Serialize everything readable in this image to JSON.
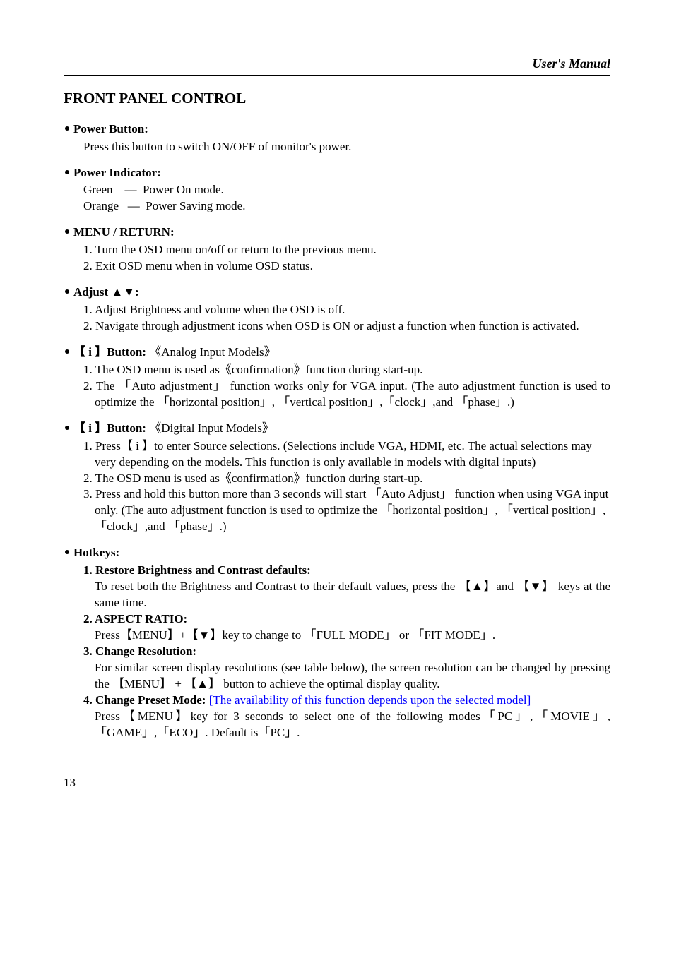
{
  "header": {
    "right": "User's Manual"
  },
  "title": "FRONT PANEL CONTROL",
  "s1": {
    "head": "Power Button:",
    "body": "Press this button to switch ON/OFF of monitor's power."
  },
  "s2": {
    "head": "Power Indicator:",
    "l1": "Green    —  Power On mode.",
    "l2": "Orange   —  Power Saving mode."
  },
  "s3": {
    "head": "MENU / RETURN:",
    "l1": "1. Turn the OSD menu on/off or return to the previous menu.",
    "l2": "2. Exit OSD menu when in volume OSD status."
  },
  "s4": {
    "head": "Adjust ▲▼:",
    "l1": "1. Adjust Brightness and volume when the OSD is off.",
    "l2": "2. Navigate through adjustment icons when OSD is ON or adjust a function when function is activated."
  },
  "s5": {
    "head_pre": "【 i 】Button:",
    "head_post": "《Analog Input Models》",
    "l1": "1. The OSD menu is used as《confirmation》function during start-up.",
    "l2": "2. The 「Auto adjustment」 function works only for VGA input. (The auto adjustment function is used to optimize the 「horizontal position」, 「vertical position」,「clock」,and 「phase」.)"
  },
  "s6": {
    "head_pre": "【 i 】Button:",
    "head_post": "《Digital Input Models》",
    "l1": "1. Press【 i 】to enter Source selections. (Selections include VGA, HDMI, etc. The actual selections may very depending on the models. This function is only available in models with digital inputs)",
    "l2": "2. The OSD menu is used as《confirmation》function during start-up.",
    "l3": "3. Press and hold this button more than 3 seconds will start 「Auto Adjust」 function when using VGA input only. (The auto adjustment function is used to optimize the 「horizontal position」, 「vertical position」, 「clock」,and 「phase」.)"
  },
  "hot": {
    "head": "Hotkeys:",
    "h1": "1. Restore Brightness and Contrast defaults:",
    "b1": "To reset both the Brightness and Contrast to their default values, press the 【▲】and 【▼】 keys at the same time.",
    "h2": "2. ASPECT RATIO:",
    "b2": "Press【MENU】+【▼】key to change to 「FULL MODE」 or 「FIT MODE」.",
    "h3": "3. Change Resolution:",
    "b3": "For similar screen display resolutions (see table below), the screen resolution can be changed by pressing the 【MENU】 + 【▲】 button to achieve the optimal display quality.",
    "h4a": "4. Change Preset Mode: ",
    "h4b": "[The availability of this function depends upon the selected model]",
    "b4": "Press【MENU】key for 3 seconds to select one of the following modes「PC」,「MOVIE」, 「GAME」,「ECO」. Default is「PC」."
  },
  "page": "13"
}
